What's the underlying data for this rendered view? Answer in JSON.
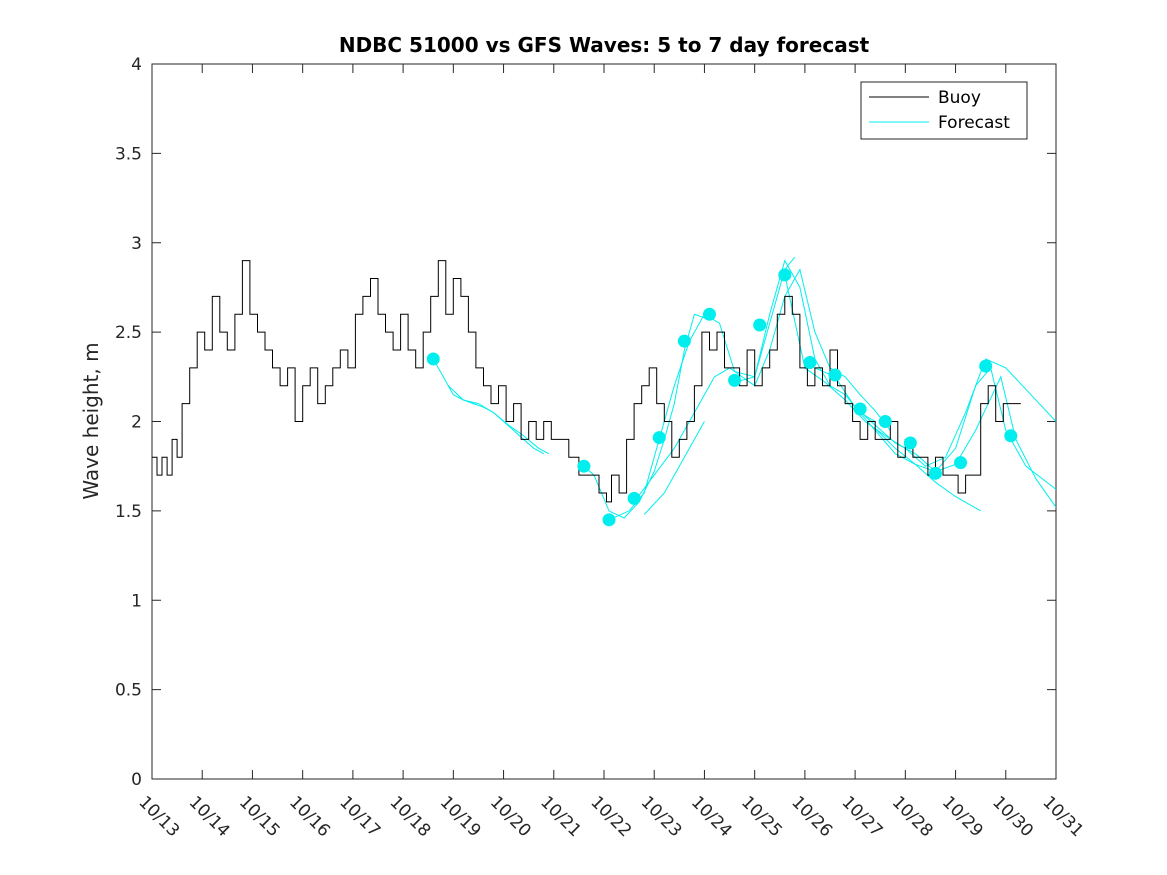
{
  "chart_data": {
    "type": "line",
    "title": "NDBC 51000 vs GFS Waves: 5 to 7 day forecast",
    "xlabel": "",
    "ylabel": "Wave height, m",
    "xlim": [
      0,
      18
    ],
    "ylim": [
      0,
      4
    ],
    "y_ticks": [
      "0",
      "0.5",
      "1",
      "1.5",
      "2",
      "2.5",
      "3",
      "3.5",
      "4"
    ],
    "x_ticks": [
      "10/13",
      "10/14",
      "10/15",
      "10/16",
      "10/17",
      "10/18",
      "10/19",
      "10/20",
      "10/21",
      "10/22",
      "10/23",
      "10/24",
      "10/25",
      "10/26",
      "10/27",
      "10/28",
      "10/29",
      "10/30",
      "10/31"
    ],
    "legend": {
      "location": "top-right",
      "entries": [
        "Buoy",
        "Forecast"
      ]
    },
    "colors": {
      "buoy": "#000000",
      "forecast": "#00eeee"
    },
    "series": [
      {
        "name": "Buoy",
        "x": [
          0.0,
          0.1,
          0.2,
          0.3,
          0.4,
          0.5,
          0.6,
          0.75,
          0.9,
          1.05,
          1.2,
          1.35,
          1.5,
          1.65,
          1.8,
          1.95,
          2.1,
          2.25,
          2.4,
          2.55,
          2.7,
          2.85,
          3.0,
          3.15,
          3.3,
          3.45,
          3.6,
          3.75,
          3.9,
          4.05,
          4.2,
          4.35,
          4.5,
          4.65,
          4.8,
          4.95,
          5.1,
          5.25,
          5.4,
          5.55,
          5.7,
          5.85,
          6.0,
          6.15,
          6.3,
          6.45,
          6.6,
          6.75,
          6.9,
          7.05,
          7.2,
          7.35,
          7.5,
          7.65,
          7.8,
          7.95,
          8.1,
          8.3,
          8.5,
          8.7,
          8.9,
          9.05,
          9.15,
          9.3,
          9.45,
          9.6,
          9.75,
          9.9,
          10.05,
          10.2,
          10.35,
          10.5,
          10.65,
          10.8,
          10.95,
          11.1,
          11.25,
          11.4,
          11.55,
          11.7,
          11.85,
          12.0,
          12.15,
          12.3,
          12.45,
          12.6,
          12.75,
          12.9,
          13.05,
          13.2,
          13.35,
          13.5,
          13.65,
          13.8,
          13.95,
          14.1,
          14.25,
          14.4,
          14.55,
          14.7,
          14.85,
          15.0,
          15.15,
          15.3,
          15.45,
          15.6,
          15.75,
          15.9,
          16.05,
          16.2,
          16.35,
          16.5,
          16.65,
          16.8,
          16.95,
          17.1,
          17.3
        ],
        "y": [
          1.8,
          1.7,
          1.8,
          1.7,
          1.9,
          1.8,
          2.1,
          2.3,
          2.5,
          2.4,
          2.7,
          2.5,
          2.4,
          2.6,
          2.9,
          2.6,
          2.5,
          2.4,
          2.3,
          2.2,
          2.3,
          2.0,
          2.2,
          2.3,
          2.1,
          2.2,
          2.3,
          2.4,
          2.3,
          2.6,
          2.7,
          2.8,
          2.6,
          2.5,
          2.4,
          2.6,
          2.4,
          2.3,
          2.5,
          2.7,
          2.9,
          2.6,
          2.8,
          2.7,
          2.5,
          2.3,
          2.2,
          2.1,
          2.2,
          2.0,
          2.1,
          1.9,
          2.0,
          1.9,
          2.0,
          1.9,
          1.9,
          1.8,
          1.7,
          1.7,
          1.6,
          1.55,
          1.7,
          1.6,
          1.9,
          2.1,
          2.2,
          2.3,
          2.1,
          2.0,
          1.8,
          1.9,
          2.0,
          2.2,
          2.5,
          2.4,
          2.5,
          2.3,
          2.3,
          2.2,
          2.4,
          2.2,
          2.3,
          2.4,
          2.6,
          2.7,
          2.6,
          2.3,
          2.2,
          2.3,
          2.2,
          2.4,
          2.2,
          2.1,
          2.0,
          1.9,
          2.0,
          1.9,
          1.9,
          2.0,
          1.8,
          1.9,
          1.8,
          1.8,
          1.7,
          1.8,
          1.7,
          1.7,
          1.6,
          1.7,
          1.7,
          2.1,
          2.2,
          2.0,
          2.1,
          2.1,
          2.1
        ]
      },
      {
        "name": "Forecast",
        "traces": [
          {
            "x": [
              5.6,
              5.8,
              6.0,
              6.2,
              6.4,
              6.6,
              6.8,
              7.0,
              7.2,
              7.4,
              7.6,
              7.8
            ],
            "y": [
              2.35,
              2.25,
              2.15,
              2.12,
              2.1,
              2.08,
              2.05,
              2.0,
              1.95,
              1.9,
              1.85,
              1.82
            ]
          },
          {
            "x": [
              5.9,
              6.2,
              6.5,
              6.8,
              7.1,
              7.4,
              7.7,
              7.9
            ],
            "y": [
              2.2,
              2.12,
              2.1,
              2.05,
              1.98,
              1.92,
              1.85,
              1.82
            ]
          },
          {
            "x": [
              8.6,
              8.8,
              9.1,
              9.4,
              9.7,
              10.0,
              10.2,
              10.4,
              10.6,
              10.8,
              11.0
            ],
            "y": [
              1.75,
              1.7,
              1.5,
              1.46,
              1.55,
              1.72,
              1.9,
              2.1,
              2.4,
              2.6,
              2.58
            ]
          },
          {
            "x": [
              9.1,
              9.5,
              9.8,
              10.1,
              10.4,
              10.7,
              11.0,
              11.3,
              11.6,
              12.0,
              12.3,
              12.6,
              12.8
            ],
            "y": [
              1.45,
              1.5,
              1.6,
              1.9,
              2.2,
              2.45,
              2.6,
              2.55,
              2.28,
              2.25,
              2.55,
              2.85,
              2.92
            ]
          },
          {
            "x": [
              9.6,
              10.0,
              10.4,
              10.8,
              11.2,
              11.5,
              11.8,
              12.0,
              12.3,
              12.6,
              12.9,
              13.2,
              13.5,
              13.8,
              14.1,
              14.4,
              14.7
            ],
            "y": [
              1.55,
              1.7,
              1.85,
              2.05,
              2.25,
              2.3,
              2.24,
              2.2,
              2.4,
              2.7,
              2.85,
              2.5,
              2.3,
              2.25,
              2.15,
              2.06,
              1.95
            ]
          },
          {
            "x": [
              9.8,
              10.2,
              10.5,
              10.8,
              11.0
            ],
            "y": [
              1.48,
              1.6,
              1.75,
              1.9,
              2.0
            ]
          },
          {
            "x": [
              11.6,
              12.0,
              12.3,
              12.6,
              12.9,
              13.2,
              13.5,
              13.8,
              14.1,
              14.4
            ],
            "y": [
              2.22,
              2.25,
              2.6,
              2.9,
              2.75,
              2.35,
              2.2,
              2.15,
              2.05,
              2.0
            ]
          },
          {
            "x": [
              12.6,
              13.0,
              13.4,
              13.8,
              14.2,
              14.6,
              15.0,
              15.4,
              15.8,
              16.2,
              16.6,
              17.0,
              17.5,
              18.0
            ],
            "y": [
              2.82,
              2.3,
              2.22,
              2.12,
              2.0,
              1.92,
              1.85,
              1.75,
              1.8,
              2.05,
              2.35,
              2.3,
              2.15,
              2.0
            ]
          },
          {
            "x": [
              13.2,
              13.6,
              14.0,
              14.4,
              14.8,
              15.2,
              15.6,
              16.0,
              16.4,
              16.7,
              17.0,
              17.4,
              18.0
            ],
            "y": [
              2.3,
              2.25,
              2.08,
              1.95,
              1.82,
              1.76,
              1.72,
              1.85,
              2.2,
              2.3,
              1.95,
              1.75,
              1.62
            ]
          },
          {
            "x": [
              14.0,
              14.4,
              14.8,
              15.2,
              15.6,
              16.0,
              16.4,
              16.9,
              17.2,
              17.6,
              18.0
            ],
            "y": [
              2.08,
              1.98,
              1.88,
              1.82,
              1.72,
              1.76,
              1.95,
              2.25,
              1.9,
              1.68,
              1.52
            ]
          },
          {
            "x": [
              14.4,
              14.8,
              15.2,
              15.6,
              16.0,
              16.5
            ],
            "y": [
              1.96,
              1.85,
              1.76,
              1.66,
              1.58,
              1.5
            ]
          }
        ],
        "markers": {
          "x": [
            5.6,
            8.6,
            9.1,
            9.6,
            10.1,
            10.6,
            11.1,
            11.6,
            12.1,
            12.6,
            13.1,
            13.6,
            14.1,
            14.6,
            15.1,
            15.6,
            16.1,
            16.6,
            17.1
          ],
          "y": [
            2.35,
            1.75,
            1.45,
            1.57,
            1.91,
            2.45,
            2.6,
            2.23,
            2.54,
            2.82,
            2.33,
            2.26,
            2.07,
            2.0,
            1.88,
            1.71,
            1.77,
            2.31,
            1.92
          ]
        }
      }
    ]
  }
}
